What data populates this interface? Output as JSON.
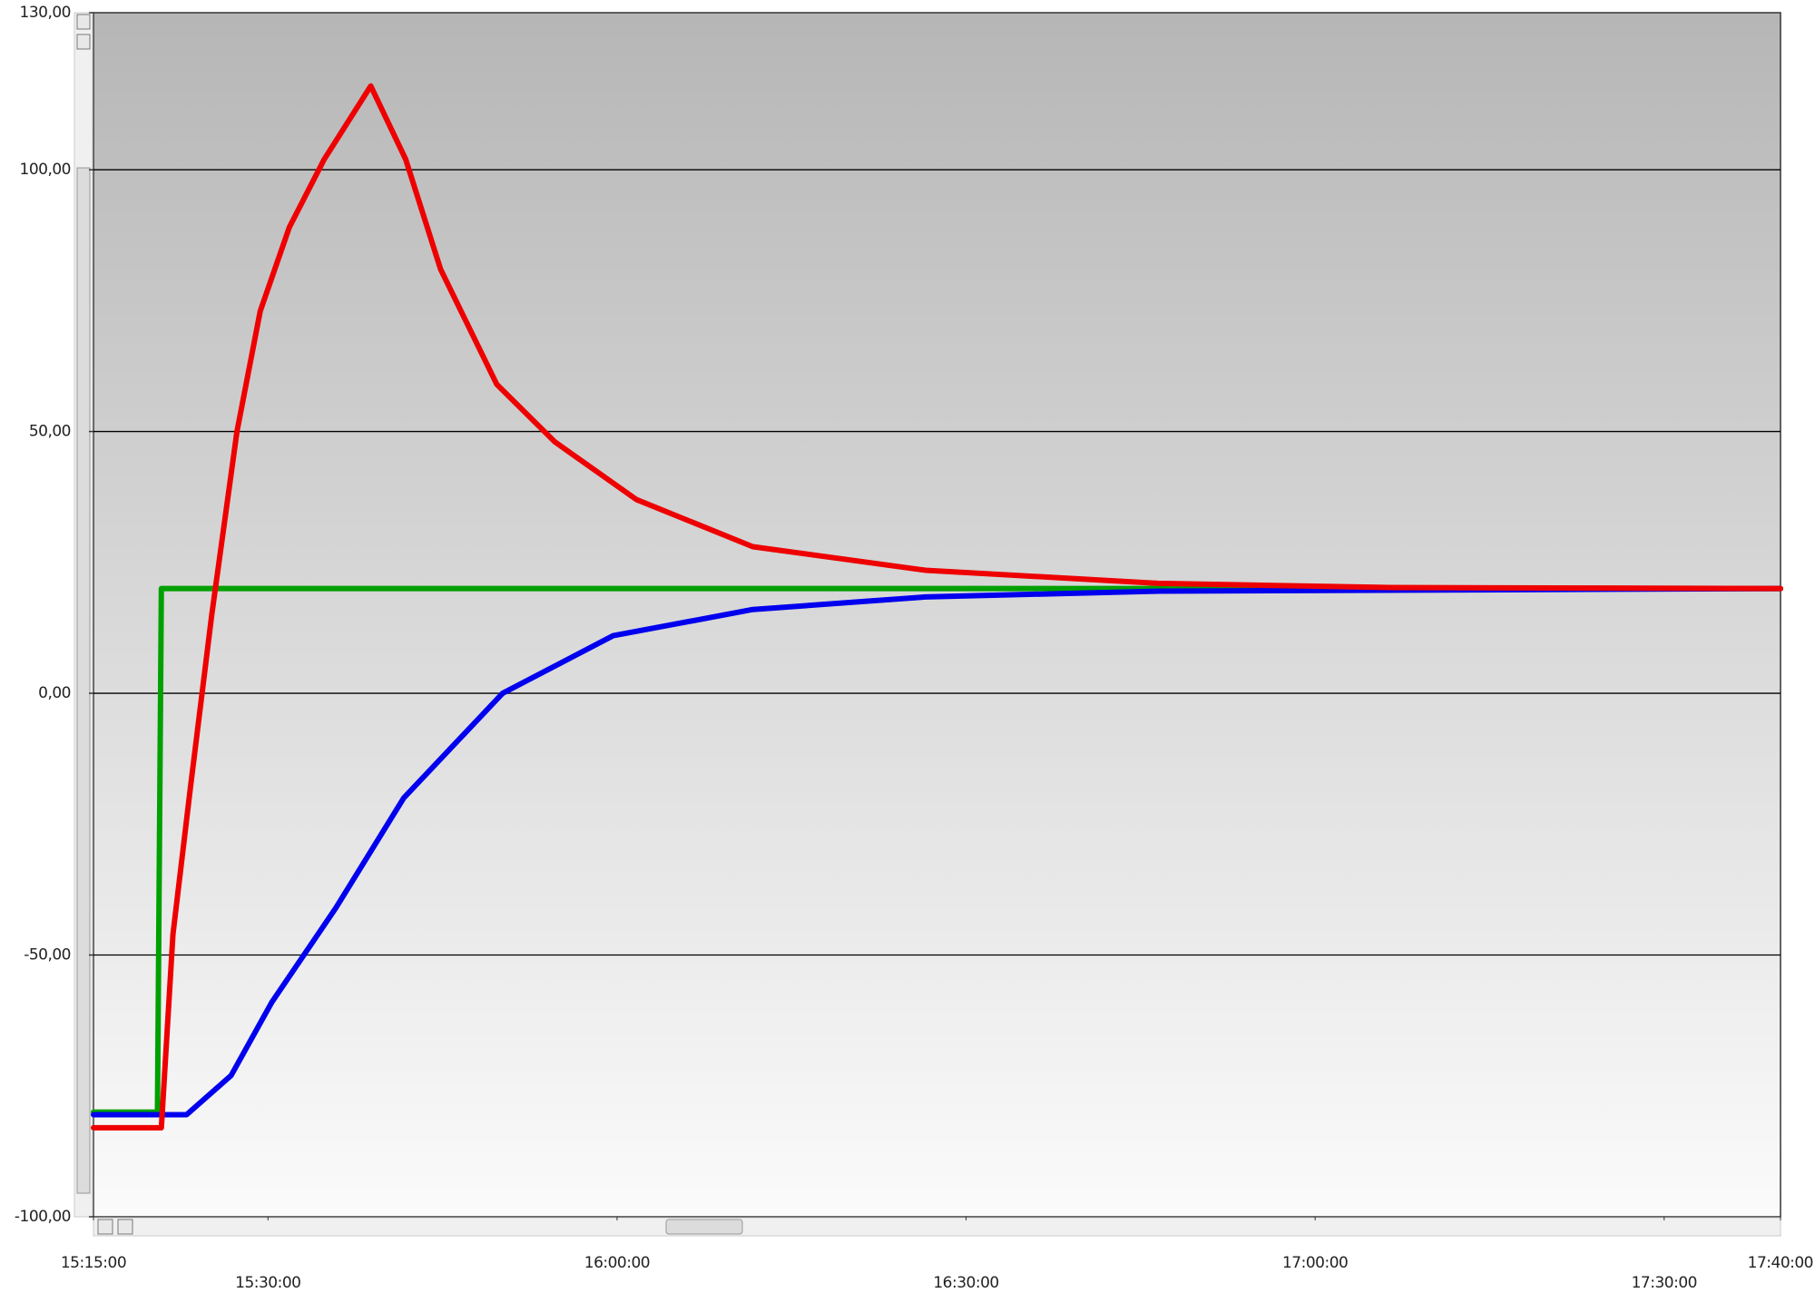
{
  "chart_data": {
    "type": "line",
    "xlim": [
      "15:15:00",
      "17:40:00"
    ],
    "xticks": [
      "15:15:00",
      "15:30:00",
      "16:00:00",
      "16:30:00",
      "17:00:00",
      "17:30:00",
      "17:40:00"
    ],
    "ylim": [
      -100,
      130
    ],
    "yticks": [
      {
        "value": -100,
        "label": "-100,00"
      },
      {
        "value": -50,
        "label": "-50,00"
      },
      {
        "value": 0,
        "label": "0,00"
      },
      {
        "value": 50,
        "label": "50,00"
      },
      {
        "value": 100,
        "label": "100,00"
      },
      {
        "value": 130,
        "label": "130,00"
      }
    ],
    "grid": true,
    "series": [
      {
        "color": "#00a000",
        "x": [
          "15:15:00",
          "15:20:30",
          "15:20:50",
          "17:40:00"
        ],
        "values": [
          -80,
          -80,
          20,
          20
        ]
      },
      {
        "color": "#0000ee",
        "x": [
          "15:15:00",
          "15:23:00",
          "15:26:50",
          "15:30:20",
          "15:35:50",
          "15:41:40",
          "15:50:10",
          "15:59:40",
          "16:11:40",
          "16:26:30",
          "16:46:30",
          "17:40:00"
        ],
        "values": [
          -80.5,
          -80.5,
          -73,
          -59,
          -41,
          -20,
          0,
          11,
          16,
          18.4,
          19.5,
          20
        ]
      },
      {
        "color": "#ee0000",
        "x": [
          "15:15:00",
          "15:20:50",
          "15:21:50",
          "15:23:20",
          "15:25:10",
          "15:27:20",
          "15:29:20",
          "15:31:50",
          "15:34:50",
          "15:38:50",
          "15:41:50",
          "15:44:50",
          "15:49:40",
          "15:54:40",
          "16:01:40",
          "16:11:40",
          "16:26:30",
          "16:46:30",
          "17:06:20",
          "17:40:00"
        ],
        "values": [
          -83,
          -83,
          -46,
          -18,
          15,
          50,
          73,
          89,
          102,
          116,
          102,
          81,
          59,
          48,
          37,
          28,
          23.5,
          21,
          20.2,
          20
        ]
      }
    ]
  }
}
